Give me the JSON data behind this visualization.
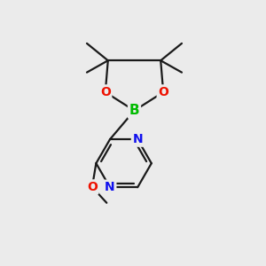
{
  "bg_color": "#ebebeb",
  "bond_color": "#1a1a1a",
  "bond_width": 1.6,
  "atom_colors": {
    "B": "#00bb00",
    "O": "#ee1100",
    "N": "#1111ee",
    "C": "#1a1a1a"
  },
  "font_size_atom": 10,
  "figsize": [
    3.0,
    3.0
  ],
  "dpi": 100
}
